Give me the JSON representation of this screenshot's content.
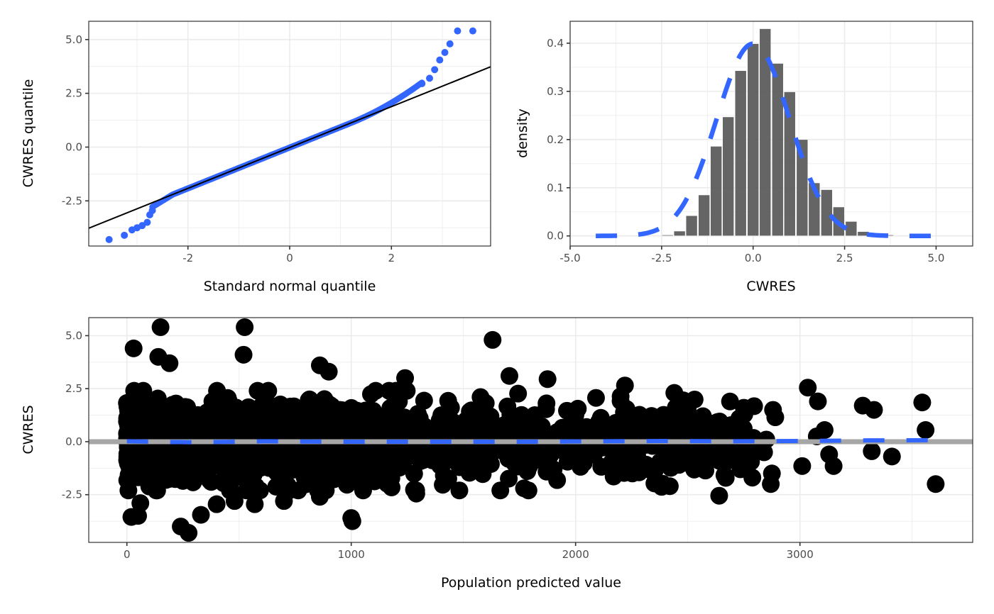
{
  "colors": {
    "qq_points": "#3366FF",
    "density_line": "#3366FF",
    "bars": "#595959",
    "scatter_points": "#000000",
    "reference_line": "#A6A6A6",
    "smooth_line": "#3366FF",
    "grid": "#EBEBEB",
    "border": "#333333"
  },
  "chart_data": [
    {
      "id": "qq",
      "type": "scatter",
      "title": "",
      "xlabel": "Standard normal quantile",
      "ylabel": "CWRES quantile",
      "xlim": [
        -3.95,
        3.95
      ],
      "ylim": [
        -4.6,
        5.85
      ],
      "x_ticks": [
        -2,
        0,
        2
      ],
      "x_tick_labels": [
        "-2",
        "0",
        "2"
      ],
      "y_ticks": [
        -2.5,
        0.0,
        2.5,
        5.0
      ],
      "y_tick_labels": [
        "-2.5",
        "0.0",
        "2.5",
        "5.0"
      ],
      "grid": true,
      "reference_line": {
        "intercept": -0.02,
        "slope": 0.95
      },
      "n_points": 1500,
      "tail_points": [
        {
          "x": -3.55,
          "y": -4.3
        },
        {
          "x": -3.25,
          "y": -4.1
        },
        {
          "x": -3.1,
          "y": -3.85
        },
        {
          "x": -3.0,
          "y": -3.75
        },
        {
          "x": -2.9,
          "y": -3.65
        },
        {
          "x": -2.8,
          "y": -3.5
        },
        {
          "x": -2.75,
          "y": -3.15
        },
        {
          "x": -2.7,
          "y": -2.95
        },
        {
          "x": 2.6,
          "y": 2.95
        },
        {
          "x": 2.75,
          "y": 3.2
        },
        {
          "x": 2.85,
          "y": 3.6
        },
        {
          "x": 2.95,
          "y": 4.05
        },
        {
          "x": 3.05,
          "y": 4.4
        },
        {
          "x": 3.15,
          "y": 4.8
        },
        {
          "x": 3.3,
          "y": 5.4
        },
        {
          "x": 3.6,
          "y": 5.4
        }
      ]
    },
    {
      "id": "histogram",
      "type": "bar",
      "title": "",
      "xlabel": "CWRES",
      "ylabel": "density",
      "xlim": [
        -5.0,
        6.0
      ],
      "ylim": [
        -0.021,
        0.4455
      ],
      "x_ticks": [
        -5.0,
        -2.5,
        0.0,
        2.5,
        5.0
      ],
      "x_tick_labels": [
        "-5.0",
        "-2.5",
        "0.0",
        "2.5",
        "5.0"
      ],
      "y_ticks": [
        0.0,
        0.1,
        0.2,
        0.3,
        0.4
      ],
      "y_tick_labels": [
        "0.0",
        "0.1",
        "0.2",
        "0.3",
        "0.4"
      ],
      "grid": true,
      "bin_width": 0.334,
      "bins": [
        {
          "center": -2.34,
          "density": 0.002
        },
        {
          "center": -2.01,
          "density": 0.01
        },
        {
          "center": -1.68,
          "density": 0.042
        },
        {
          "center": -1.34,
          "density": 0.085
        },
        {
          "center": -1.01,
          "density": 0.186
        },
        {
          "center": -0.68,
          "density": 0.247
        },
        {
          "center": -0.34,
          "density": 0.343
        },
        {
          "center": 0.0,
          "density": 0.399
        },
        {
          "center": 0.33,
          "density": 0.43
        },
        {
          "center": 0.67,
          "density": 0.358
        },
        {
          "center": 1.0,
          "density": 0.299
        },
        {
          "center": 1.34,
          "density": 0.2
        },
        {
          "center": 1.67,
          "density": 0.11
        },
        {
          "center": 2.01,
          "density": 0.096
        },
        {
          "center": 2.34,
          "density": 0.06
        },
        {
          "center": 2.68,
          "density": 0.03
        },
        {
          "center": 3.01,
          "density": 0.009
        },
        {
          "center": 3.68,
          "density": 0.002
        }
      ],
      "density_curve": {
        "type": "normal",
        "mean": 0.0,
        "sd": 1.0,
        "x_range": [
          -4.3,
          5.3
        ]
      }
    },
    {
      "id": "cwres_vs_pred",
      "type": "scatter",
      "title": "",
      "xlabel": "Population predicted value",
      "ylabel": "CWRES",
      "xlim": [
        -170,
        3770
      ],
      "ylim": [
        -4.75,
        5.85
      ],
      "x_ticks": [
        0,
        1000,
        2000,
        3000
      ],
      "x_tick_labels": [
        "0",
        "1000",
        "2000",
        "3000"
      ],
      "y_ticks": [
        -2.5,
        0.0,
        2.5,
        5.0
      ],
      "y_tick_labels": [
        "-2.5",
        "0.0",
        "2.5",
        "5.0"
      ],
      "grid": true,
      "reference_line": {
        "y": 0
      },
      "smooth_line": [
        {
          "x": 0,
          "y": 0.02
        },
        {
          "x": 300,
          "y": -0.03
        },
        {
          "x": 600,
          "y": 0.02
        },
        {
          "x": 900,
          "y": 0.0
        },
        {
          "x": 1200,
          "y": 0.0
        },
        {
          "x": 1500,
          "y": 0.0
        },
        {
          "x": 1800,
          "y": 0.0
        },
        {
          "x": 2100,
          "y": 0.02
        },
        {
          "x": 2400,
          "y": 0.03
        },
        {
          "x": 2700,
          "y": 0.02
        },
        {
          "x": 3000,
          "y": 0.03
        },
        {
          "x": 3300,
          "y": 0.06
        },
        {
          "x": 3600,
          "y": 0.07
        }
      ],
      "n_points": 3000,
      "outliers": [
        {
          "x": 30,
          "y": 4.4
        },
        {
          "x": 150,
          "y": 5.4
        },
        {
          "x": 140,
          "y": 4.0
        },
        {
          "x": 190,
          "y": 3.7
        },
        {
          "x": 525,
          "y": 5.4
        },
        {
          "x": 520,
          "y": 4.1
        },
        {
          "x": 1630,
          "y": 4.8
        },
        {
          "x": 1705,
          "y": 3.1
        },
        {
          "x": 1875,
          "y": 2.95
        },
        {
          "x": 900,
          "y": 3.3
        },
        {
          "x": 860,
          "y": 3.6
        },
        {
          "x": 1240,
          "y": 3.0
        },
        {
          "x": 2220,
          "y": 2.65
        },
        {
          "x": 3035,
          "y": 2.55
        },
        {
          "x": 3080,
          "y": 1.9
        },
        {
          "x": 3280,
          "y": 1.7
        },
        {
          "x": 3330,
          "y": 1.5
        },
        {
          "x": 3545,
          "y": 1.85
        },
        {
          "x": 3560,
          "y": 0.55
        },
        {
          "x": 3110,
          "y": 0.55
        },
        {
          "x": 3075,
          "y": 0.25
        },
        {
          "x": 3130,
          "y": -0.6
        },
        {
          "x": 3150,
          "y": -1.15
        },
        {
          "x": 3320,
          "y": -0.45
        },
        {
          "x": 3410,
          "y": -0.7
        },
        {
          "x": 3010,
          "y": -1.15
        },
        {
          "x": 3605,
          "y": -2.0
        },
        {
          "x": 2875,
          "y": -1.5
        },
        {
          "x": 2870,
          "y": -2.0
        },
        {
          "x": 2880,
          "y": 1.5
        },
        {
          "x": 2890,
          "y": 1.15
        },
        {
          "x": 2640,
          "y": -2.55
        },
        {
          "x": 2420,
          "y": -2.1
        },
        {
          "x": 1770,
          "y": -2.2
        },
        {
          "x": 1790,
          "y": -2.3
        },
        {
          "x": 1000,
          "y": -3.6
        },
        {
          "x": 1005,
          "y": -3.75
        },
        {
          "x": 860,
          "y": -2.6
        },
        {
          "x": 1290,
          "y": -2.45
        },
        {
          "x": 20,
          "y": -3.55
        },
        {
          "x": 50,
          "y": -3.5
        },
        {
          "x": 60,
          "y": -2.9
        },
        {
          "x": 240,
          "y": -4.0
        },
        {
          "x": 275,
          "y": -4.3
        },
        {
          "x": 330,
          "y": -3.45
        },
        {
          "x": 570,
          "y": -2.95
        },
        {
          "x": 480,
          "y": -2.8
        },
        {
          "x": 700,
          "y": -2.8
        },
        {
          "x": 400,
          "y": -2.95
        },
        {
          "x": 2750,
          "y": 1.6
        },
        {
          "x": 2730,
          "y": 1.1
        },
        {
          "x": 2440,
          "y": 2.3
        },
        {
          "x": 2480,
          "y": 1.95
        },
        {
          "x": 2850,
          "y": 0.1
        },
        {
          "x": 2770,
          "y": -0.85
        },
        {
          "x": 2840,
          "y": -0.5
        }
      ]
    }
  ]
}
